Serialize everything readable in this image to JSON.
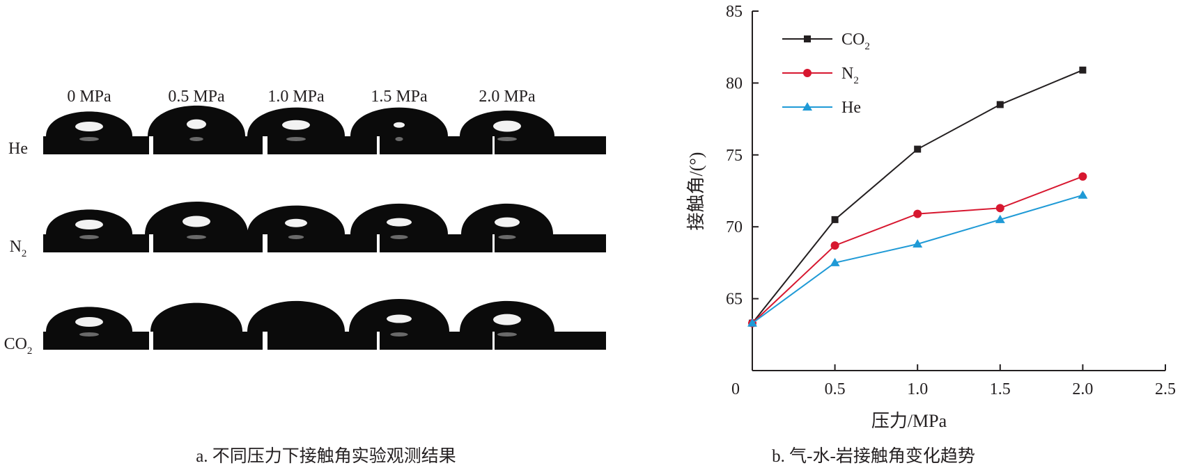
{
  "panel_a": {
    "caption": "a. 不同压力下接触角实验观测结果",
    "columns": [
      "0 MPa",
      "0.5 MPa",
      "1.0 MPa",
      "1.5 MPa",
      "2.0 MPa"
    ],
    "rows": [
      {
        "gas": "He",
        "gas_base": "He",
        "gas_sub": ""
      },
      {
        "gas": "N2",
        "gas_base": "N",
        "gas_sub": "2"
      },
      {
        "gas": "CO2",
        "gas_base": "CO",
        "gas_sub": "2"
      }
    ]
  },
  "chart_data": {
    "type": "line",
    "caption": "b. 气-水-岩接触角变化趋势",
    "xlabel": "压力/MPa",
    "ylabel": "接触角/(°)",
    "xlim": [
      0,
      2.5
    ],
    "ylim": [
      60,
      85
    ],
    "x_ticks": [
      "0",
      "0.5",
      "1.0",
      "1.5",
      "2.0",
      "2.5"
    ],
    "y_ticks": [
      "65",
      "70",
      "75",
      "80",
      "85"
    ],
    "grid": false,
    "legend_position": "top-left",
    "x": [
      0,
      0.5,
      1.0,
      1.5,
      2.0
    ],
    "series": [
      {
        "name": "CO2",
        "name_base": "CO",
        "name_sub": "2",
        "marker": "square",
        "color": "#231f20",
        "values": [
          63.3,
          70.5,
          75.4,
          78.5,
          80.9
        ]
      },
      {
        "name": "N2",
        "name_base": "N",
        "name_sub": "2",
        "marker": "circle",
        "color": "#d7172f",
        "values": [
          63.3,
          68.7,
          70.9,
          71.3,
          73.5
        ]
      },
      {
        "name": "He",
        "name_base": "He",
        "name_sub": "",
        "marker": "triangle",
        "color": "#1f9ad6",
        "values": [
          63.3,
          67.5,
          68.8,
          70.5,
          72.2
        ]
      }
    ]
  }
}
